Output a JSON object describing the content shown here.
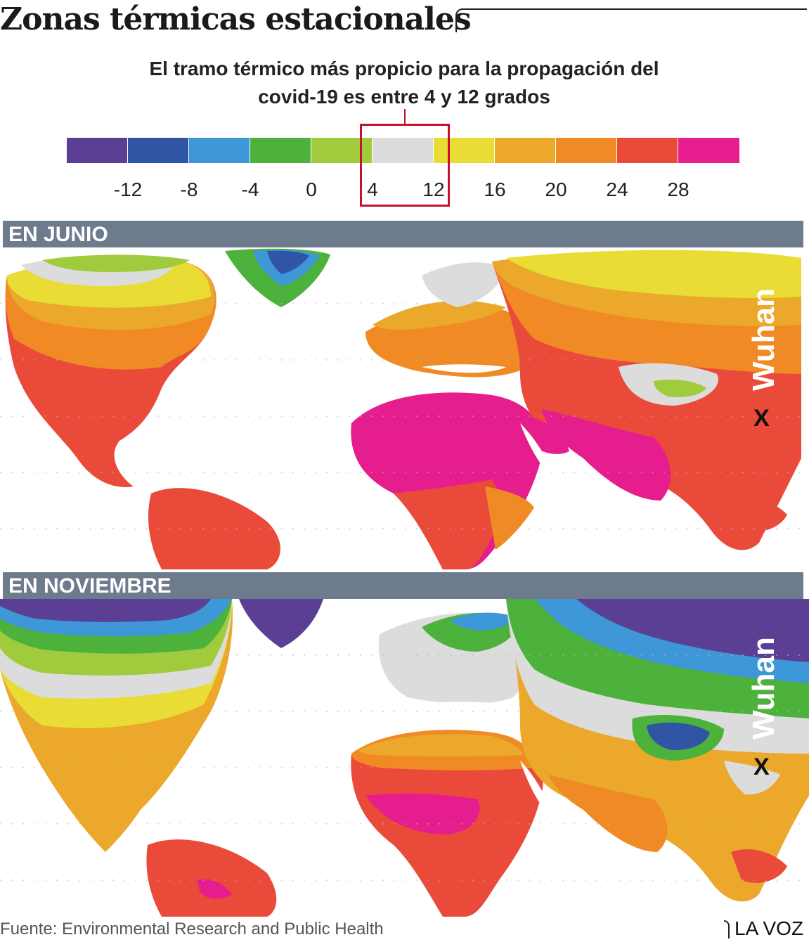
{
  "header": {
    "title": "Zonas térmicas estacionales",
    "subtitle_line1": "El tramo térmico más propicio para la propagación del",
    "subtitle_line2": "covid-19 es entre 4 y 12 grados"
  },
  "legend": {
    "colors": [
      "#5b3f95",
      "#2f55a4",
      "#3e97d6",
      "#4db23b",
      "#9fcb3c",
      "#dcdcdc",
      "#e8dc35",
      "#eba82a",
      "#f08a24",
      "#ea4a3a",
      "#e61d8c"
    ],
    "labels": [
      "-12",
      "-8",
      "-4",
      "0",
      "4",
      "12",
      "16",
      "20",
      "24",
      "28"
    ],
    "highlight_range": [
      "4",
      "12"
    ]
  },
  "panels": [
    {
      "label": "EN JUNIO",
      "city": "Wuhan",
      "marker": "X"
    },
    {
      "label": "EN NOVIEMBRE",
      "city": "Wuhan",
      "marker": "X"
    }
  ],
  "footer": {
    "source": "Fuente: Environmental Research and Public Health",
    "brand": "LA VOZ"
  }
}
